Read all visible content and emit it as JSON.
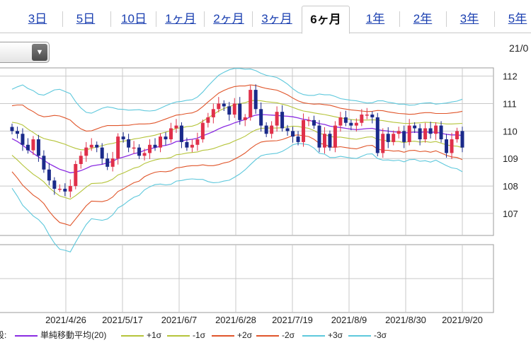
{
  "tabs": [
    {
      "label": "3日",
      "active": false
    },
    {
      "label": "5日",
      "active": false
    },
    {
      "label": "10日",
      "active": false
    },
    {
      "label": "1ヶ月",
      "active": false
    },
    {
      "label": "2ヶ月",
      "active": false
    },
    {
      "label": "3ヶ月",
      "active": false
    },
    {
      "label": "6ヶ月",
      "active": true
    },
    {
      "label": "1年",
      "active": false
    },
    {
      "label": "2年",
      "active": false
    },
    {
      "label": "3年",
      "active": false
    },
    {
      "label": "5年",
      "active": false
    }
  ],
  "date_readout": "21/0",
  "legend_prefix": "段:",
  "legend": [
    {
      "label": "単純移動平均(20)",
      "color": "#8a2be2"
    },
    {
      "label": "+1σ",
      "color": "#b5c43a"
    },
    {
      "label": "-1σ",
      "color": "#b5c43a"
    },
    {
      "label": "+2σ",
      "color": "#e0552a"
    },
    {
      "label": "-2σ",
      "color": "#e0552a"
    },
    {
      "label": "+3σ",
      "color": "#5ec8dc"
    },
    {
      "label": "-3σ",
      "color": "#5ec8dc"
    }
  ],
  "colors": {
    "up_candle": "#e0304a",
    "down_candle": "#1a2a8a",
    "grid": "#c8c8c8"
  },
  "chart_data": {
    "type": "line",
    "subtype": "candlestick with Bollinger Bands",
    "ylim": [
      106.2,
      112.3
    ],
    "yticks": [
      107,
      108,
      109,
      110,
      111,
      112
    ],
    "xticks": [
      "2021/4/26",
      "2021/5/17",
      "2021/6/7",
      "2021/6/28",
      "2021/7/19",
      "2021/8/9",
      "2021/8/30",
      "2021/9/20"
    ],
    "grid": true,
    "close": [
      110.0,
      109.9,
      109.5,
      109.3,
      109.7,
      109.1,
      108.6,
      108.2,
      107.9,
      107.9,
      107.8,
      108.0,
      108.8,
      109.1,
      109.4,
      109.5,
      109.4,
      109.0,
      108.7,
      109.0,
      109.8,
      109.7,
      109.4,
      109.4,
      109.1,
      109.2,
      109.5,
      109.4,
      109.8,
      109.7,
      110.1,
      110.2,
      109.6,
      109.4,
      109.5,
      109.7,
      110.3,
      110.5,
      110.8,
      111.0,
      110.9,
      110.6,
      111.0,
      110.4,
      110.5,
      111.5,
      110.8,
      110.2,
      109.9,
      110.2,
      110.7,
      110.1,
      110.0,
      109.8,
      109.6,
      110.4,
      110.4,
      110.2,
      109.4,
      109.9,
      109.4,
      110.2,
      110.5,
      110.3,
      110.2,
      110.3,
      110.6,
      110.6,
      110.5,
      109.2,
      109.9,
      109.6,
      109.9,
      110.0,
      109.6,
      110.2,
      110.1,
      109.7,
      110.1,
      109.9,
      110.2,
      109.7,
      109.2,
      109.7,
      110.0,
      109.4
    ],
    "bands": {
      "sma20": [
        109.72,
        109.62,
        109.49,
        109.33,
        109.19,
        109.06,
        108.94,
        108.81,
        108.71,
        108.61,
        108.55,
        108.48,
        108.51,
        108.56,
        108.64,
        108.73,
        108.76,
        108.79,
        108.84,
        108.9,
        109.0,
        109.05,
        109.11,
        109.18,
        109.22,
        109.3,
        109.35,
        109.4,
        109.45,
        109.48,
        109.53,
        109.62,
        109.64,
        109.68,
        109.7,
        109.74,
        109.83,
        109.9,
        109.98,
        110.08,
        110.16,
        110.22,
        110.3,
        110.36,
        110.42,
        110.52,
        110.58,
        110.6,
        110.59,
        110.58,
        110.57,
        110.55,
        110.54,
        110.52,
        110.48,
        110.43,
        110.4,
        110.34,
        110.27,
        110.24,
        110.18,
        110.15,
        110.13,
        110.1,
        110.07,
        110.05,
        110.07,
        110.09,
        110.1,
        110.05,
        110.02,
        110.0,
        109.97,
        109.96,
        109.93,
        109.95,
        109.96,
        109.95,
        109.97,
        109.95,
        109.96,
        109.92,
        109.88,
        109.86,
        109.86,
        109.84
      ],
      "upper1": [
        110.32,
        110.29,
        110.22,
        110.07,
        109.95,
        109.82,
        109.73,
        109.68,
        109.64,
        109.58,
        109.52,
        109.44,
        109.37,
        109.32,
        109.32,
        109.37,
        109.42,
        109.47,
        109.52,
        109.55,
        109.6,
        109.63,
        109.66,
        109.71,
        109.74,
        109.78,
        109.81,
        109.85,
        109.91,
        109.96,
        110.02,
        110.1,
        110.12,
        110.16,
        110.18,
        110.24,
        110.36,
        110.48,
        110.6,
        110.73,
        110.82,
        110.89,
        110.96,
        111.0,
        111.03,
        111.1,
        111.12,
        111.1,
        111.07,
        111.05,
        111.03,
        110.98,
        110.93,
        110.86,
        110.79,
        110.73,
        110.7,
        110.66,
        110.63,
        110.6,
        110.56,
        110.52,
        110.48,
        110.45,
        110.42,
        110.4,
        110.4,
        110.4,
        110.41,
        110.4,
        110.38,
        110.35,
        110.32,
        110.3,
        110.28,
        110.28,
        110.29,
        110.3,
        110.32,
        110.31,
        110.3,
        110.28,
        110.26,
        110.26,
        110.27,
        110.28
      ],
      "lower1": [
        109.12,
        108.95,
        108.76,
        108.59,
        108.43,
        108.3,
        108.15,
        107.94,
        107.78,
        107.64,
        107.58,
        107.52,
        107.65,
        107.8,
        107.96,
        108.09,
        108.1,
        108.11,
        108.16,
        108.25,
        108.4,
        108.47,
        108.56,
        108.65,
        108.7,
        108.82,
        108.89,
        108.95,
        108.99,
        109.0,
        109.04,
        109.14,
        109.16,
        109.2,
        109.22,
        109.24,
        109.3,
        109.32,
        109.36,
        109.43,
        109.5,
        109.55,
        109.64,
        109.72,
        109.81,
        109.94,
        110.04,
        110.1,
        110.11,
        110.11,
        110.11,
        110.12,
        110.15,
        110.18,
        110.17,
        110.13,
        110.1,
        110.02,
        109.91,
        109.88,
        109.8,
        109.78,
        109.78,
        109.75,
        109.72,
        109.7,
        109.74,
        109.78,
        109.79,
        109.7,
        109.66,
        109.65,
        109.62,
        109.62,
        109.58,
        109.62,
        109.63,
        109.6,
        109.62,
        109.59,
        109.62,
        109.56,
        109.5,
        109.46,
        109.45,
        109.4
      ],
      "upper2": [
        110.92,
        110.95,
        110.95,
        110.81,
        110.71,
        110.58,
        110.52,
        110.54,
        110.57,
        110.55,
        110.48,
        110.4,
        110.22,
        110.08,
        110.0,
        110.01,
        110.08,
        110.15,
        110.2,
        110.2,
        110.2,
        110.21,
        110.21,
        110.24,
        110.26,
        110.26,
        110.27,
        110.3,
        110.37,
        110.44,
        110.51,
        110.58,
        110.6,
        110.64,
        110.66,
        110.74,
        110.89,
        111.06,
        111.22,
        111.38,
        111.48,
        111.56,
        111.62,
        111.64,
        111.64,
        111.68,
        111.66,
        111.6,
        111.55,
        111.52,
        111.49,
        111.41,
        111.32,
        111.2,
        111.1,
        111.03,
        111.0,
        110.98,
        110.99,
        110.96,
        110.94,
        110.89,
        110.83,
        110.8,
        110.77,
        110.75,
        110.73,
        110.71,
        110.72,
        110.75,
        110.74,
        110.7,
        110.67,
        110.64,
        110.63,
        110.61,
        110.62,
        110.65,
        110.67,
        110.67,
        110.64,
        110.64,
        110.64,
        110.66,
        110.68,
        110.72
      ],
      "lower2": [
        108.52,
        108.29,
        108.03,
        107.85,
        107.67,
        107.54,
        107.36,
        107.08,
        106.85,
        106.67,
        106.62,
        106.56,
        106.8,
        107.04,
        107.28,
        107.45,
        107.44,
        107.43,
        107.48,
        107.6,
        107.8,
        107.89,
        108.01,
        108.12,
        108.18,
        108.34,
        108.43,
        108.5,
        108.53,
        108.52,
        108.55,
        108.66,
        108.68,
        108.72,
        108.74,
        108.74,
        108.77,
        108.74,
        108.74,
        108.78,
        108.84,
        108.88,
        108.98,
        109.08,
        109.2,
        109.36,
        109.5,
        109.6,
        109.63,
        109.64,
        109.65,
        109.69,
        109.76,
        109.84,
        109.86,
        109.83,
        109.8,
        109.7,
        109.55,
        109.52,
        109.42,
        109.41,
        109.43,
        109.4,
        109.37,
        109.35,
        109.41,
        109.47,
        109.48,
        109.35,
        109.3,
        109.3,
        109.27,
        109.28,
        109.23,
        109.29,
        109.3,
        109.25,
        109.27,
        109.23,
        109.28,
        109.2,
        109.12,
        109.06,
        109.04,
        108.96
      ],
      "upper3": [
        111.52,
        111.61,
        111.68,
        111.55,
        111.47,
        111.34,
        111.31,
        111.4,
        111.5,
        111.52,
        111.44,
        111.36,
        111.07,
        110.84,
        110.68,
        110.65,
        110.74,
        110.83,
        110.88,
        110.85,
        110.8,
        110.79,
        110.76,
        110.77,
        110.78,
        110.74,
        110.73,
        110.75,
        110.83,
        110.92,
        111.0,
        111.06,
        111.08,
        111.12,
        111.14,
        111.24,
        111.42,
        111.64,
        111.84,
        112.03,
        112.14,
        112.23,
        112.28,
        112.28,
        112.25,
        112.26,
        112.2,
        112.1,
        112.03,
        111.99,
        111.95,
        111.84,
        111.71,
        111.54,
        111.41,
        111.33,
        111.3,
        111.3,
        111.35,
        111.32,
        111.32,
        111.26,
        111.18,
        111.15,
        111.12,
        111.1,
        111.06,
        111.02,
        111.03,
        111.1,
        111.1,
        111.05,
        111.02,
        110.98,
        110.98,
        110.94,
        110.95,
        111.0,
        111.02,
        111.03,
        110.98,
        111.0,
        111.02,
        111.06,
        111.09,
        111.16
      ],
      "lower3": [
        107.92,
        107.63,
        107.3,
        107.11,
        106.91,
        106.78,
        106.57,
        106.22,
        105.92,
        105.7,
        105.66,
        105.6,
        105.95,
        106.28,
        106.6,
        106.81,
        106.78,
        106.75,
        106.8,
        106.95,
        107.2,
        107.31,
        107.46,
        107.59,
        107.66,
        107.86,
        107.97,
        108.05,
        108.07,
        108.04,
        108.06,
        108.18,
        108.2,
        108.24,
        108.26,
        108.24,
        108.24,
        108.16,
        108.12,
        108.13,
        108.18,
        108.21,
        108.32,
        108.44,
        108.59,
        108.78,
        108.96,
        109.1,
        109.15,
        109.17,
        109.19,
        109.26,
        109.37,
        109.5,
        109.55,
        109.53,
        109.5,
        109.38,
        109.19,
        109.16,
        109.04,
        109.04,
        109.08,
        109.05,
        109.02,
        109.0,
        109.08,
        109.16,
        109.17,
        109.0,
        108.94,
        108.95,
        108.92,
        108.94,
        108.88,
        108.96,
        108.97,
        108.9,
        108.92,
        108.87,
        108.94,
        108.84,
        108.74,
        108.66,
        108.63,
        108.52
      ]
    }
  }
}
